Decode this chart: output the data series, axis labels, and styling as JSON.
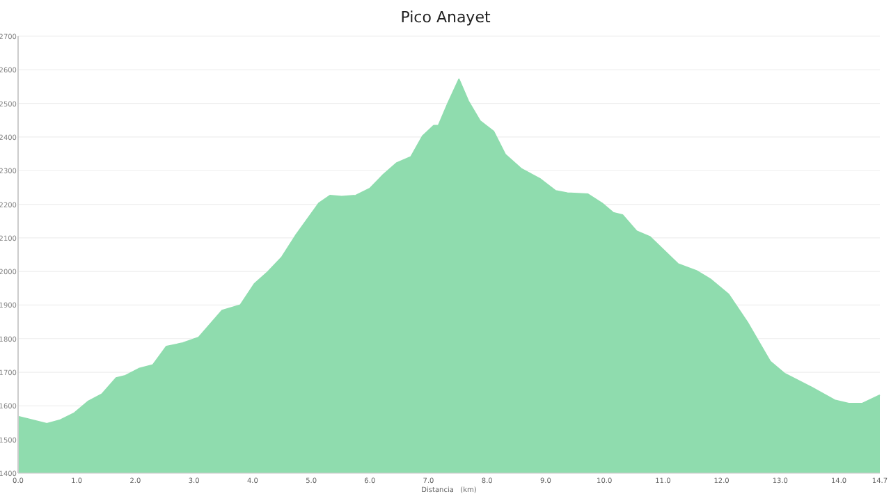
{
  "chart_data": {
    "type": "area",
    "title": "Pico Anayet",
    "xlabel": "Distancia   (km)",
    "x": [
      0,
      0.17,
      0.49,
      0.72,
      0.96,
      1.2,
      1.43,
      1.67,
      1.83,
      2.06,
      2.3,
      2.53,
      2.81,
      3.08,
      3.48,
      3.79,
      4.03,
      4.26,
      4.5,
      4.73,
      5.13,
      5.32,
      5.52,
      5.76,
      6.0,
      6.23,
      6.46,
      6.7,
      6.9,
      7.09,
      7.17,
      7.33,
      7.52,
      7.68,
      7.88,
      8.11,
      8.31,
      8.58,
      8.9,
      9.17,
      9.37,
      9.72,
      9.96,
      10.15,
      10.31,
      10.55,
      10.78,
      11.26,
      11.57,
      11.81,
      12.12,
      12.44,
      12.83,
      13.07,
      13.54,
      13.93,
      14.17,
      14.4,
      14.7
    ],
    "series": [
      {
        "color": "#8fdcae",
        "values": [
          1568,
          1561,
          1547,
          1558,
          1579,
          1614,
          1635,
          1683,
          1690,
          1711,
          1722,
          1777,
          1787,
          1804,
          1884,
          1900,
          1963,
          1999,
          2043,
          2106,
          2203,
          2226,
          2223,
          2226,
          2247,
          2288,
          2323,
          2341,
          2403,
          2434,
          2434,
          2500,
          2572,
          2507,
          2448,
          2417,
          2348,
          2306,
          2276,
          2240,
          2233,
          2230,
          2203,
          2175,
          2168,
          2120,
          2103,
          2022,
          2002,
          1977,
          1932,
          1849,
          1732,
          1697,
          1655,
          1617,
          1607,
          1607,
          1632
        ]
      }
    ],
    "xlim": [
      0,
      14.7
    ],
    "xticks": [
      {
        "value": 0,
        "label": "0.0"
      },
      {
        "value": 1,
        "label": "1.0"
      },
      {
        "value": 2,
        "label": "2.0"
      },
      {
        "value": 3,
        "label": "3.0"
      },
      {
        "value": 4,
        "label": "4.0"
      },
      {
        "value": 5,
        "label": "5.0"
      },
      {
        "value": 6,
        "label": "6.0"
      },
      {
        "value": 7,
        "label": "7.0"
      },
      {
        "value": 8,
        "label": "8.0"
      },
      {
        "value": 9,
        "label": "9.0"
      },
      {
        "value": 10,
        "label": "10.0"
      },
      {
        "value": 11,
        "label": "11.0"
      },
      {
        "value": 12,
        "label": "12.0"
      },
      {
        "value": 13,
        "label": "13.0"
      },
      {
        "value": 14,
        "label": "14.0"
      },
      14.7
    ],
    "ylim": [
      1400,
      2700
    ],
    "yticks": [
      1400,
      1500,
      1600,
      1700,
      1800,
      1900,
      2000,
      2100,
      2200,
      2300,
      2400,
      2500,
      2600,
      2700
    ],
    "grid": "y"
  }
}
